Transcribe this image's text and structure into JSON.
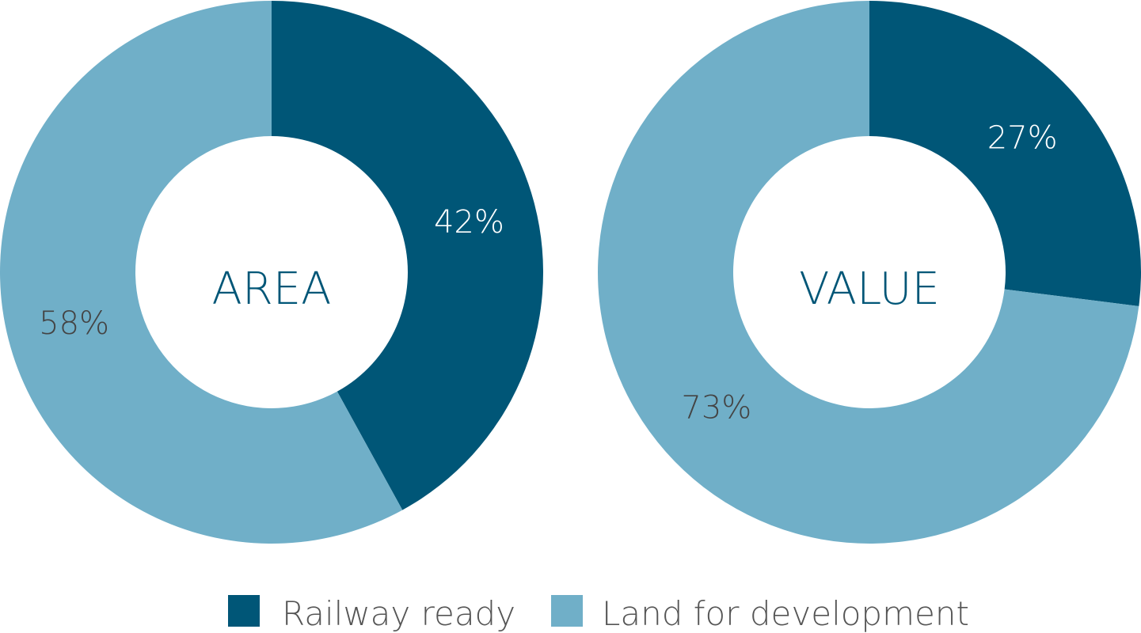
{
  "chart_data": [
    {
      "type": "donut",
      "center_label": "AREA",
      "categories": [
        "Railway ready",
        "Land for development"
      ],
      "values": [
        42,
        58
      ],
      "labels": [
        "42%",
        "58%"
      ],
      "colors": [
        "#005677",
        "#70afc8"
      ]
    },
    {
      "type": "donut",
      "center_label": "VALUE",
      "categories": [
        "Railway ready",
        "Land for development"
      ],
      "values": [
        27,
        73
      ],
      "labels": [
        "27%",
        "73%"
      ],
      "colors": [
        "#005677",
        "#70afc8"
      ]
    }
  ],
  "legend": {
    "placement": "bottom-center",
    "items": [
      {
        "label": "Railway ready",
        "color": "#005677"
      },
      {
        "label": "Land for development",
        "color": "#70afc8"
      }
    ]
  },
  "colors": {
    "center_text": "#005677",
    "dark_slice_label": "#ffffff",
    "light_slice_label": "#444444",
    "legend_text": "#555555"
  }
}
